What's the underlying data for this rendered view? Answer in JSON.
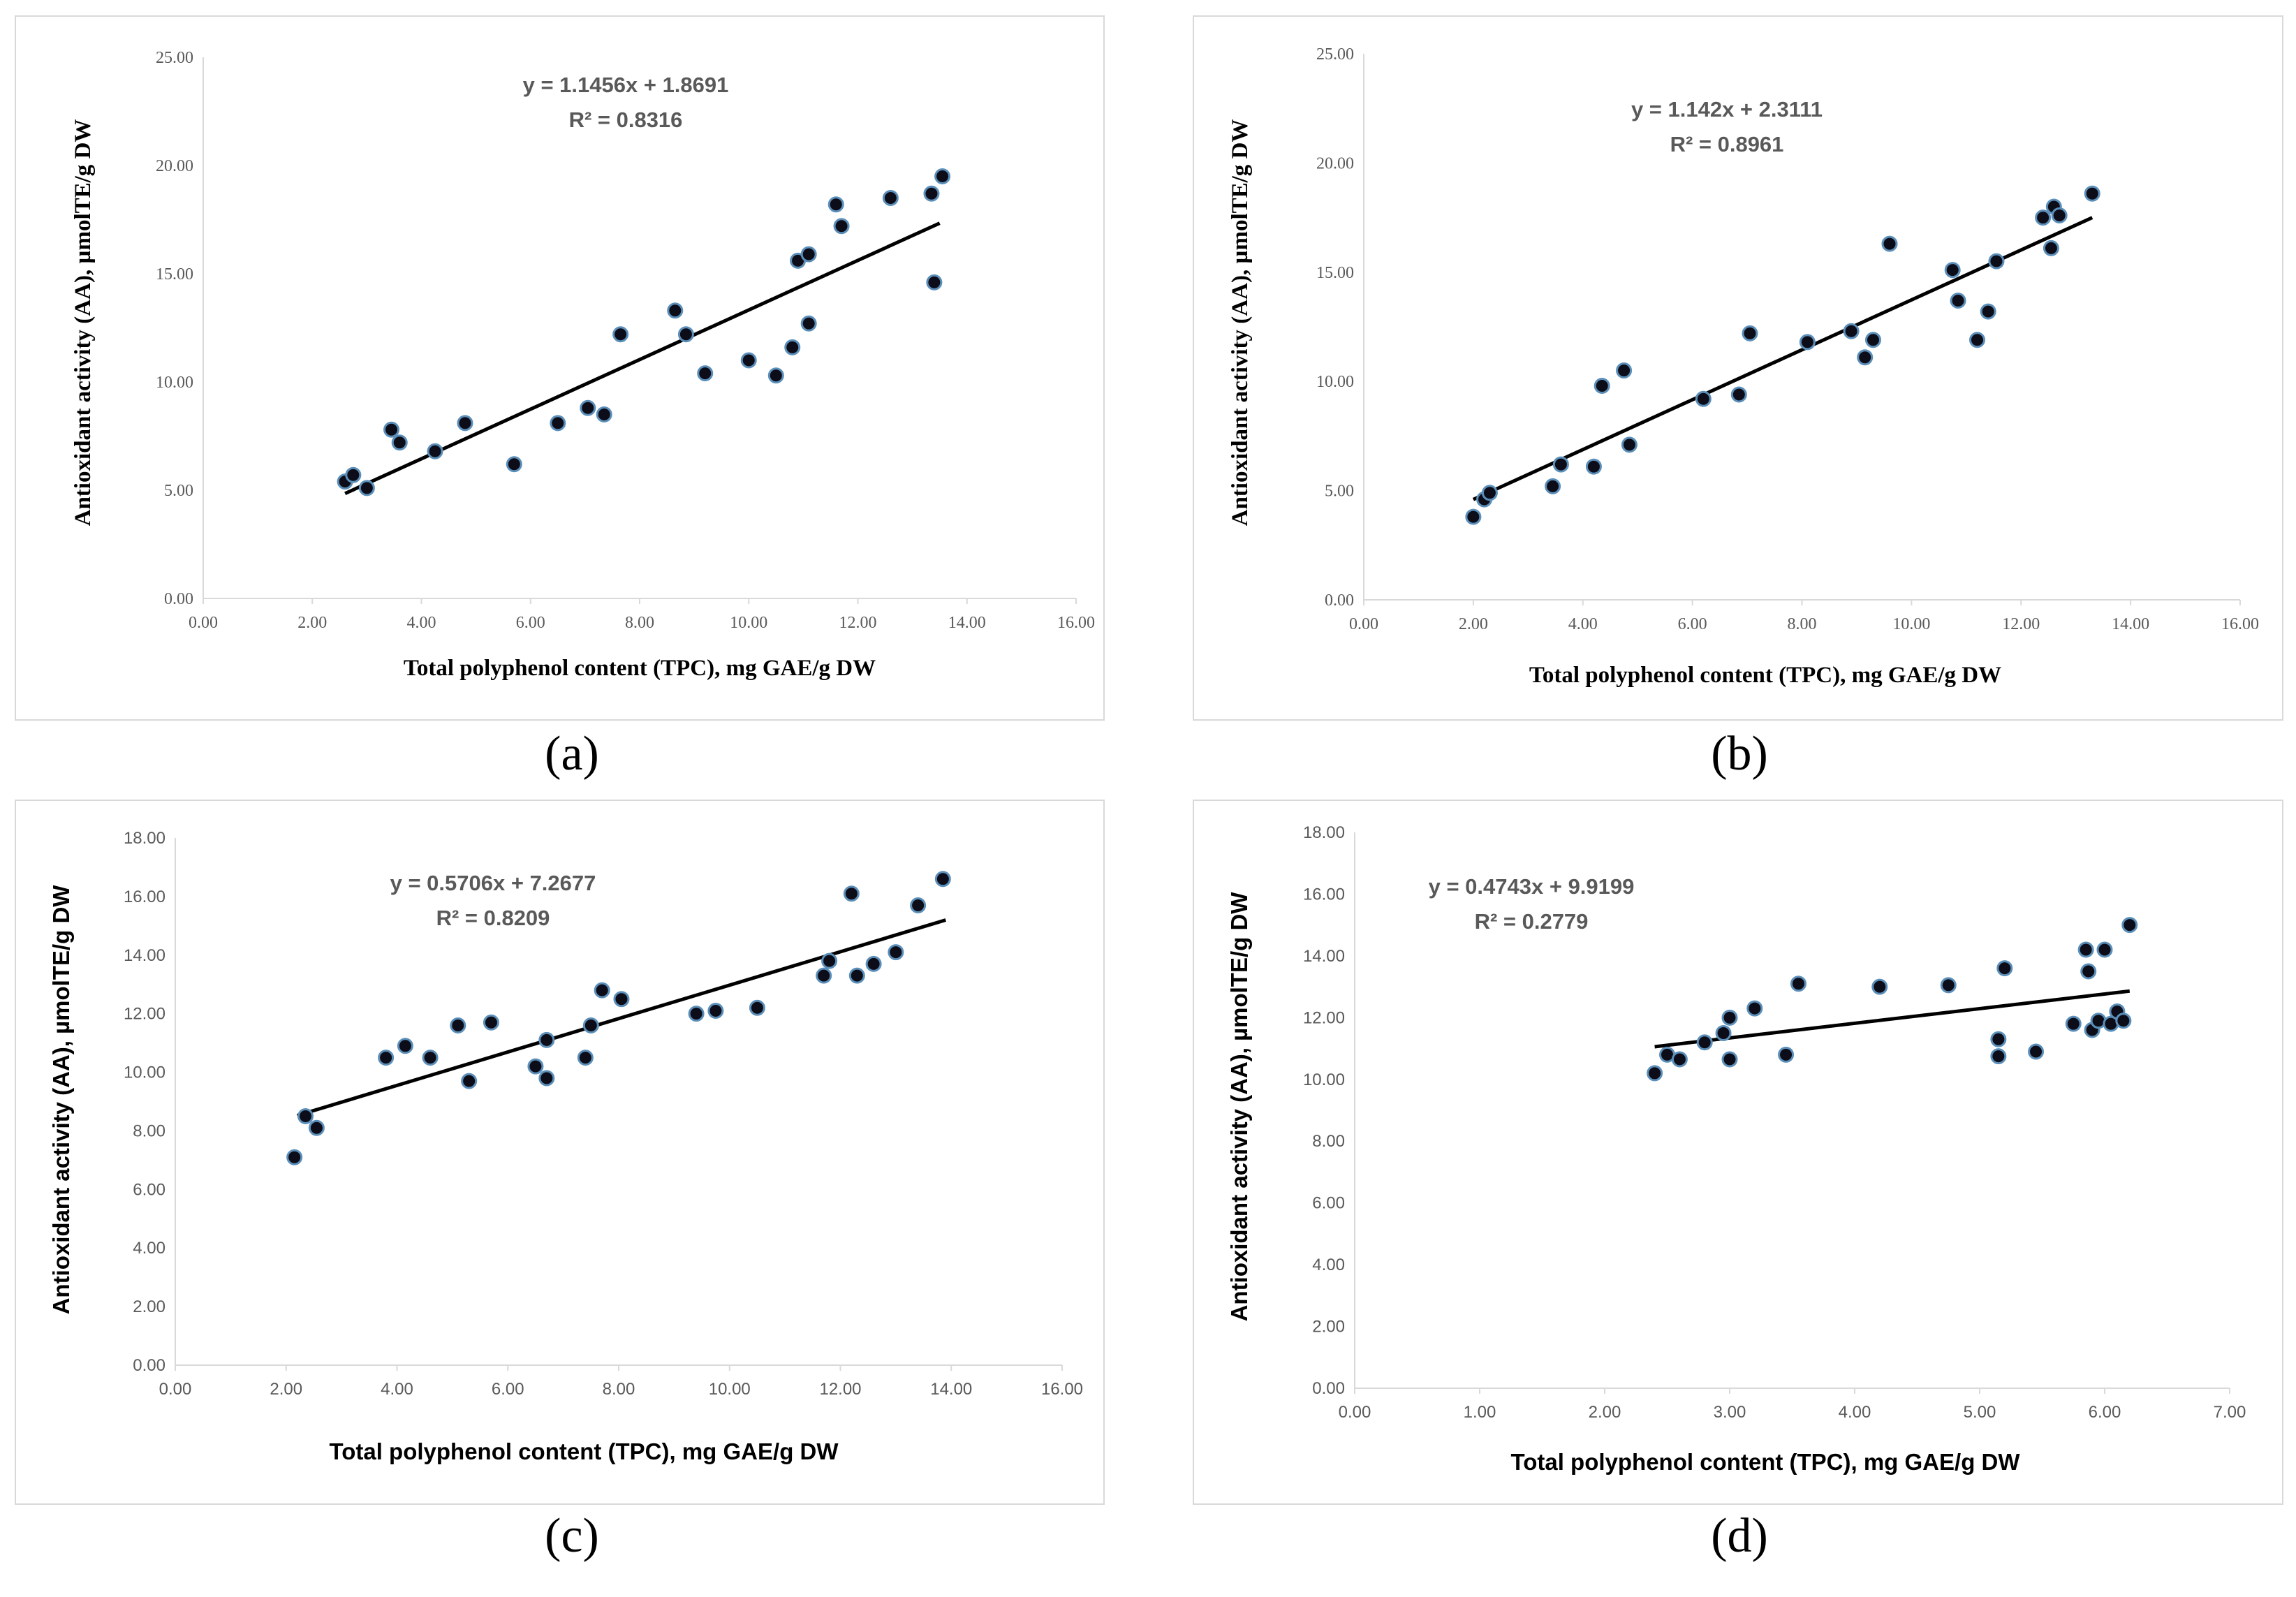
{
  "chart_data": [
    {
      "id": "a",
      "caption": "(a)",
      "type": "scatter",
      "xlabel": "Total polyphenol content (TPC), mg GAE/g DW",
      "ylabel": "Antioxidant  activity (AA), µmolTE/g DW",
      "xlim": [
        0,
        16
      ],
      "ylim": [
        0,
        25
      ],
      "xticks": [
        "0.00",
        "2.00",
        "4.00",
        "6.00",
        "8.00",
        "10.00",
        "12.00",
        "14.00",
        "16.00"
      ],
      "yticks": [
        "0.00",
        "5.00",
        "10.00",
        "15.00",
        "20.00",
        "25.00"
      ],
      "equation": "y = 1.1456x + 1.8691",
      "r2": "R² = 0.8316",
      "trend": {
        "slope": 1.1456,
        "intercept": 1.8691,
        "x_from": 2.6,
        "x_to": 13.5
      },
      "points": [
        [
          2.6,
          5.4
        ],
        [
          2.75,
          5.7
        ],
        [
          3.0,
          5.1
        ],
        [
          3.45,
          7.8
        ],
        [
          3.6,
          7.2
        ],
        [
          4.25,
          6.8
        ],
        [
          4.8,
          8.1
        ],
        [
          5.7,
          6.2
        ],
        [
          6.5,
          8.1
        ],
        [
          7.05,
          8.8
        ],
        [
          7.35,
          8.5
        ],
        [
          7.65,
          12.2
        ],
        [
          8.65,
          13.3
        ],
        [
          8.85,
          12.2
        ],
        [
          9.2,
          10.4
        ],
        [
          10.0,
          11.0
        ],
        [
          10.5,
          10.3
        ],
        [
          10.8,
          11.6
        ],
        [
          10.9,
          15.6
        ],
        [
          11.1,
          15.9
        ],
        [
          11.1,
          12.7
        ],
        [
          11.6,
          18.2
        ],
        [
          11.7,
          17.2
        ],
        [
          12.6,
          18.5
        ],
        [
          13.35,
          18.7
        ],
        [
          13.4,
          14.6
        ],
        [
          13.55,
          19.5
        ]
      ]
    },
    {
      "id": "b",
      "caption": "(b)",
      "type": "scatter",
      "xlabel": "Total polyphenol content (TPC), mg GAE/g DW",
      "ylabel": "Antioxidant  activity (AA), µmolTE/g DW",
      "xlim": [
        0,
        16
      ],
      "ylim": [
        0,
        25
      ],
      "xticks": [
        "0.00",
        "2.00",
        "4.00",
        "6.00",
        "8.00",
        "10.00",
        "12.00",
        "14.00",
        "16.00"
      ],
      "yticks": [
        "0.00",
        "5.00",
        "10.00",
        "15.00",
        "20.00",
        "25.00"
      ],
      "equation": "y = 1.142x + 2.3111",
      "r2": "R² = 0.8961",
      "trend": {
        "slope": 1.142,
        "intercept": 2.3111,
        "x_from": 2.0,
        "x_to": 13.3
      },
      "points": [
        [
          2.0,
          3.8
        ],
        [
          2.2,
          4.6
        ],
        [
          2.3,
          4.9
        ],
        [
          3.45,
          5.2
        ],
        [
          3.6,
          6.2
        ],
        [
          4.2,
          6.1
        ],
        [
          4.35,
          9.8
        ],
        [
          4.75,
          10.5
        ],
        [
          4.85,
          7.1
        ],
        [
          6.2,
          9.2
        ],
        [
          6.85,
          9.4
        ],
        [
          7.05,
          12.2
        ],
        [
          8.1,
          11.8
        ],
        [
          8.9,
          12.3
        ],
        [
          9.15,
          11.1
        ],
        [
          9.3,
          11.9
        ],
        [
          9.6,
          16.3
        ],
        [
          10.75,
          15.1
        ],
        [
          10.85,
          13.7
        ],
        [
          11.2,
          11.9
        ],
        [
          11.4,
          13.2
        ],
        [
          11.55,
          15.5
        ],
        [
          12.4,
          17.5
        ],
        [
          12.55,
          16.1
        ],
        [
          12.6,
          18.0
        ],
        [
          12.7,
          17.6
        ],
        [
          13.3,
          18.6
        ]
      ]
    },
    {
      "id": "c",
      "caption": "(c)",
      "type": "scatter",
      "xlabel": "Total polyphenol content (TPC), mg GAE/g DW",
      "ylabel": "Antioxidant activity (AA), µmolTE/g DW",
      "xlim": [
        0,
        16
      ],
      "ylim": [
        0,
        18
      ],
      "xticks": [
        "0.00",
        "2.00",
        "4.00",
        "6.00",
        "8.00",
        "10.00",
        "12.00",
        "14.00",
        "16.00"
      ],
      "yticks": [
        "0.00",
        "2.00",
        "4.00",
        "6.00",
        "8.00",
        "10.00",
        "12.00",
        "14.00",
        "16.00",
        "18.00"
      ],
      "equation": "y = 0.5706x + 7.2677",
      "r2": "R² = 0.8209",
      "trend": {
        "slope": 0.5706,
        "intercept": 7.2677,
        "x_from": 2.2,
        "x_to": 13.9
      },
      "points": [
        [
          2.15,
          7.1
        ],
        [
          2.35,
          8.5
        ],
        [
          2.55,
          8.1
        ],
        [
          3.8,
          10.5
        ],
        [
          4.15,
          10.9
        ],
        [
          4.6,
          10.5
        ],
        [
          5.1,
          11.6
        ],
        [
          5.3,
          9.7
        ],
        [
          5.7,
          11.7
        ],
        [
          6.5,
          10.2
        ],
        [
          6.7,
          11.1
        ],
        [
          6.7,
          9.8
        ],
        [
          7.4,
          10.5
        ],
        [
          7.5,
          11.6
        ],
        [
          7.7,
          12.8
        ],
        [
          8.05,
          12.5
        ],
        [
          9.4,
          12.0
        ],
        [
          9.75,
          12.1
        ],
        [
          10.5,
          12.2
        ],
        [
          11.7,
          13.3
        ],
        [
          11.8,
          13.8
        ],
        [
          12.2,
          16.1
        ],
        [
          12.3,
          13.3
        ],
        [
          12.6,
          13.7
        ],
        [
          13.0,
          14.1
        ],
        [
          13.4,
          15.7
        ],
        [
          13.85,
          16.6
        ]
      ]
    },
    {
      "id": "d",
      "caption": "(d)",
      "type": "scatter",
      "xlabel": "Total polyphenol content (TPC), mg GAE/g DW",
      "ylabel": "Antioxidant activity (AA), µmolTE/g DW",
      "xlim": [
        0,
        7
      ],
      "ylim": [
        0,
        18
      ],
      "xticks": [
        "0.00",
        "1.00",
        "2.00",
        "3.00",
        "4.00",
        "5.00",
        "6.00",
        "7.00"
      ],
      "yticks": [
        "0.00",
        "2.00",
        "4.00",
        "6.00",
        "8.00",
        "10.00",
        "12.00",
        "14.00",
        "16.00",
        "18.00"
      ],
      "equation": "y = 0.4743x + 9.9199",
      "r2": "R² = 0.2779",
      "trend": {
        "slope": 0.4743,
        "intercept": 9.9199,
        "x_from": 2.4,
        "x_to": 6.2
      },
      "points": [
        [
          2.4,
          10.2
        ],
        [
          2.5,
          10.8
        ],
        [
          2.6,
          10.65
        ],
        [
          2.8,
          11.2
        ],
        [
          2.95,
          11.5
        ],
        [
          3.0,
          12.0
        ],
        [
          3.0,
          10.65
        ],
        [
          3.2,
          12.3
        ],
        [
          3.45,
          10.8
        ],
        [
          3.55,
          13.1
        ],
        [
          4.2,
          13.0
        ],
        [
          4.75,
          13.05
        ],
        [
          5.15,
          11.3
        ],
        [
          5.15,
          10.75
        ],
        [
          5.2,
          13.6
        ],
        [
          5.45,
          10.9
        ],
        [
          5.75,
          11.8
        ],
        [
          5.85,
          14.2
        ],
        [
          5.87,
          13.5
        ],
        [
          5.9,
          11.6
        ],
        [
          5.95,
          11.9
        ],
        [
          6.0,
          14.2
        ],
        [
          6.05,
          11.8
        ],
        [
          6.1,
          12.2
        ],
        [
          6.15,
          11.9
        ],
        [
          6.2,
          15.0
        ]
      ]
    }
  ]
}
